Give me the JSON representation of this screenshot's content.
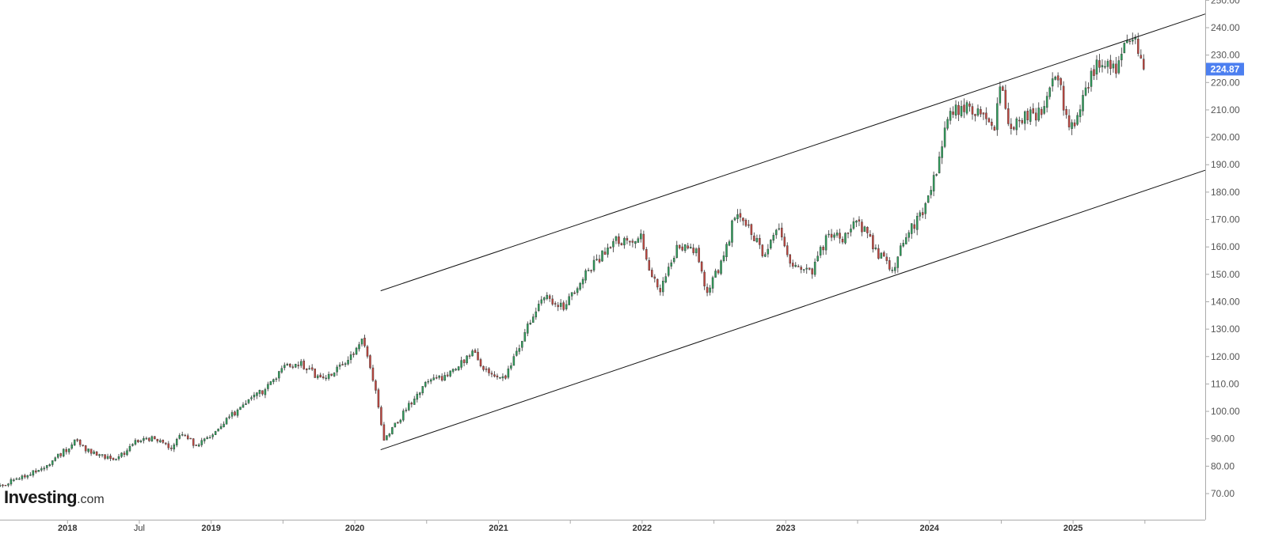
{
  "colors": {
    "up": "#2e9e5b",
    "down": "#c1463f",
    "wick": "#555555",
    "axis": "#aaaaaa",
    "trendline": "#111111",
    "price_tag": "#4c7ff0"
  },
  "brand": {
    "main": "Investing",
    "suffix": ".com"
  },
  "last_price_label": "224.87",
  "chart_data": {
    "type": "candlestick",
    "interval": "weekly",
    "ylim": [
      63,
      250
    ],
    "y_ticks": [
      {
        "value": 70,
        "label": "70.00"
      },
      {
        "value": 80,
        "label": "80.00"
      },
      {
        "value": 90,
        "label": "90.00"
      },
      {
        "value": 100,
        "label": "100.00"
      },
      {
        "value": 110,
        "label": "110.00"
      },
      {
        "value": 120,
        "label": "120.00"
      },
      {
        "value": 130,
        "label": "130.00"
      },
      {
        "value": 140,
        "label": "140.00"
      },
      {
        "value": 150,
        "label": "150.00"
      },
      {
        "value": 160,
        "label": "160.00"
      },
      {
        "value": 170,
        "label": "170.00"
      },
      {
        "value": 180,
        "label": "180.00"
      },
      {
        "value": 190,
        "label": "190.00"
      },
      {
        "value": 200,
        "label": "200.00"
      },
      {
        "value": 210,
        "label": "210.00"
      },
      {
        "value": 220,
        "label": "220.00"
      },
      {
        "value": 230,
        "label": "230.00"
      },
      {
        "value": 240,
        "label": "240.00"
      },
      {
        "value": 250,
        "label": "250.00"
      }
    ],
    "xlim": [
      2017.53,
      2025.92
    ],
    "x_ticks": [
      {
        "value": 2018.0,
        "label": "2018",
        "bold": true
      },
      {
        "value": 2018.5,
        "label": "Jul",
        "bold": false
      },
      {
        "value": 2019.0,
        "label": "2019",
        "bold": true
      },
      {
        "value": 2019.5,
        "label": "",
        "bold": false
      },
      {
        "value": 2020.0,
        "label": "2020",
        "bold": true
      },
      {
        "value": 2020.5,
        "label": "",
        "bold": false
      },
      {
        "value": 2021.0,
        "label": "2021",
        "bold": true
      },
      {
        "value": 2021.5,
        "label": "",
        "bold": false
      },
      {
        "value": 2022.0,
        "label": "2022",
        "bold": true
      },
      {
        "value": 2022.5,
        "label": "",
        "bold": false
      },
      {
        "value": 2023.0,
        "label": "2023",
        "bold": true
      },
      {
        "value": 2023.5,
        "label": "",
        "bold": false
      },
      {
        "value": 2024.0,
        "label": "2024",
        "bold": true
      },
      {
        "value": 2024.5,
        "label": "",
        "bold": false
      },
      {
        "value": 2025.0,
        "label": "2025",
        "bold": true
      },
      {
        "value": 2025.5,
        "label": "",
        "bold": false
      }
    ],
    "last_price": 224.87,
    "trendlines": [
      {
        "name": "upper-channel",
        "x1": 2020.18,
        "y1": 144,
        "x2": 2025.92,
        "y2": 245
      },
      {
        "name": "lower-channel",
        "x1": 2020.18,
        "y1": 86,
        "x2": 2025.92,
        "y2": 188
      }
    ],
    "anchors": [
      [
        2017.53,
        73
      ],
      [
        2017.7,
        76
      ],
      [
        2017.9,
        82
      ],
      [
        2018.05,
        89
      ],
      [
        2018.2,
        84
      ],
      [
        2018.35,
        83
      ],
      [
        2018.5,
        90
      ],
      [
        2018.65,
        90
      ],
      [
        2018.72,
        87
      ],
      [
        2018.8,
        92
      ],
      [
        2018.9,
        87
      ],
      [
        2019.05,
        94
      ],
      [
        2019.2,
        101
      ],
      [
        2019.35,
        107
      ],
      [
        2019.5,
        116
      ],
      [
        2019.62,
        118
      ],
      [
        2019.75,
        112
      ],
      [
        2019.9,
        116
      ],
      [
        2020.05,
        126
      ],
      [
        2020.15,
        108
      ],
      [
        2020.2,
        89
      ],
      [
        2020.35,
        100
      ],
      [
        2020.5,
        110
      ],
      [
        2020.7,
        115
      ],
      [
        2020.82,
        122
      ],
      [
        2020.9,
        116
      ],
      [
        2021.05,
        112
      ],
      [
        2021.15,
        125
      ],
      [
        2021.3,
        142
      ],
      [
        2021.45,
        138
      ],
      [
        2021.6,
        150
      ],
      [
        2021.8,
        162
      ],
      [
        2022.0,
        163
      ],
      [
        2022.05,
        152
      ],
      [
        2022.12,
        143
      ],
      [
        2022.25,
        161
      ],
      [
        2022.38,
        158
      ],
      [
        2022.45,
        142
      ],
      [
        2022.58,
        158
      ],
      [
        2022.65,
        173
      ],
      [
        2022.75,
        167
      ],
      [
        2022.85,
        157
      ],
      [
        2022.95,
        166
      ],
      [
        2023.05,
        153
      ],
      [
        2023.18,
        151
      ],
      [
        2023.3,
        165
      ],
      [
        2023.4,
        162
      ],
      [
        2023.5,
        170
      ],
      [
        2023.62,
        159
      ],
      [
        2023.75,
        152
      ],
      [
        2023.82,
        163
      ],
      [
        2023.95,
        172
      ],
      [
        2024.05,
        188
      ],
      [
        2024.12,
        208
      ],
      [
        2024.25,
        211
      ],
      [
        2024.38,
        207
      ],
      [
        2024.45,
        202
      ],
      [
        2024.5,
        221
      ],
      [
        2024.55,
        203
      ],
      [
        2024.65,
        207
      ],
      [
        2024.78,
        209
      ],
      [
        2024.88,
        225
      ],
      [
        2024.95,
        208
      ],
      [
        2025.0,
        202
      ],
      [
        2025.08,
        218
      ],
      [
        2025.18,
        227
      ],
      [
        2025.3,
        224
      ],
      [
        2025.38,
        235
      ],
      [
        2025.42,
        238
      ],
      [
        2025.46,
        232
      ],
      [
        2025.5,
        225
      ]
    ]
  }
}
